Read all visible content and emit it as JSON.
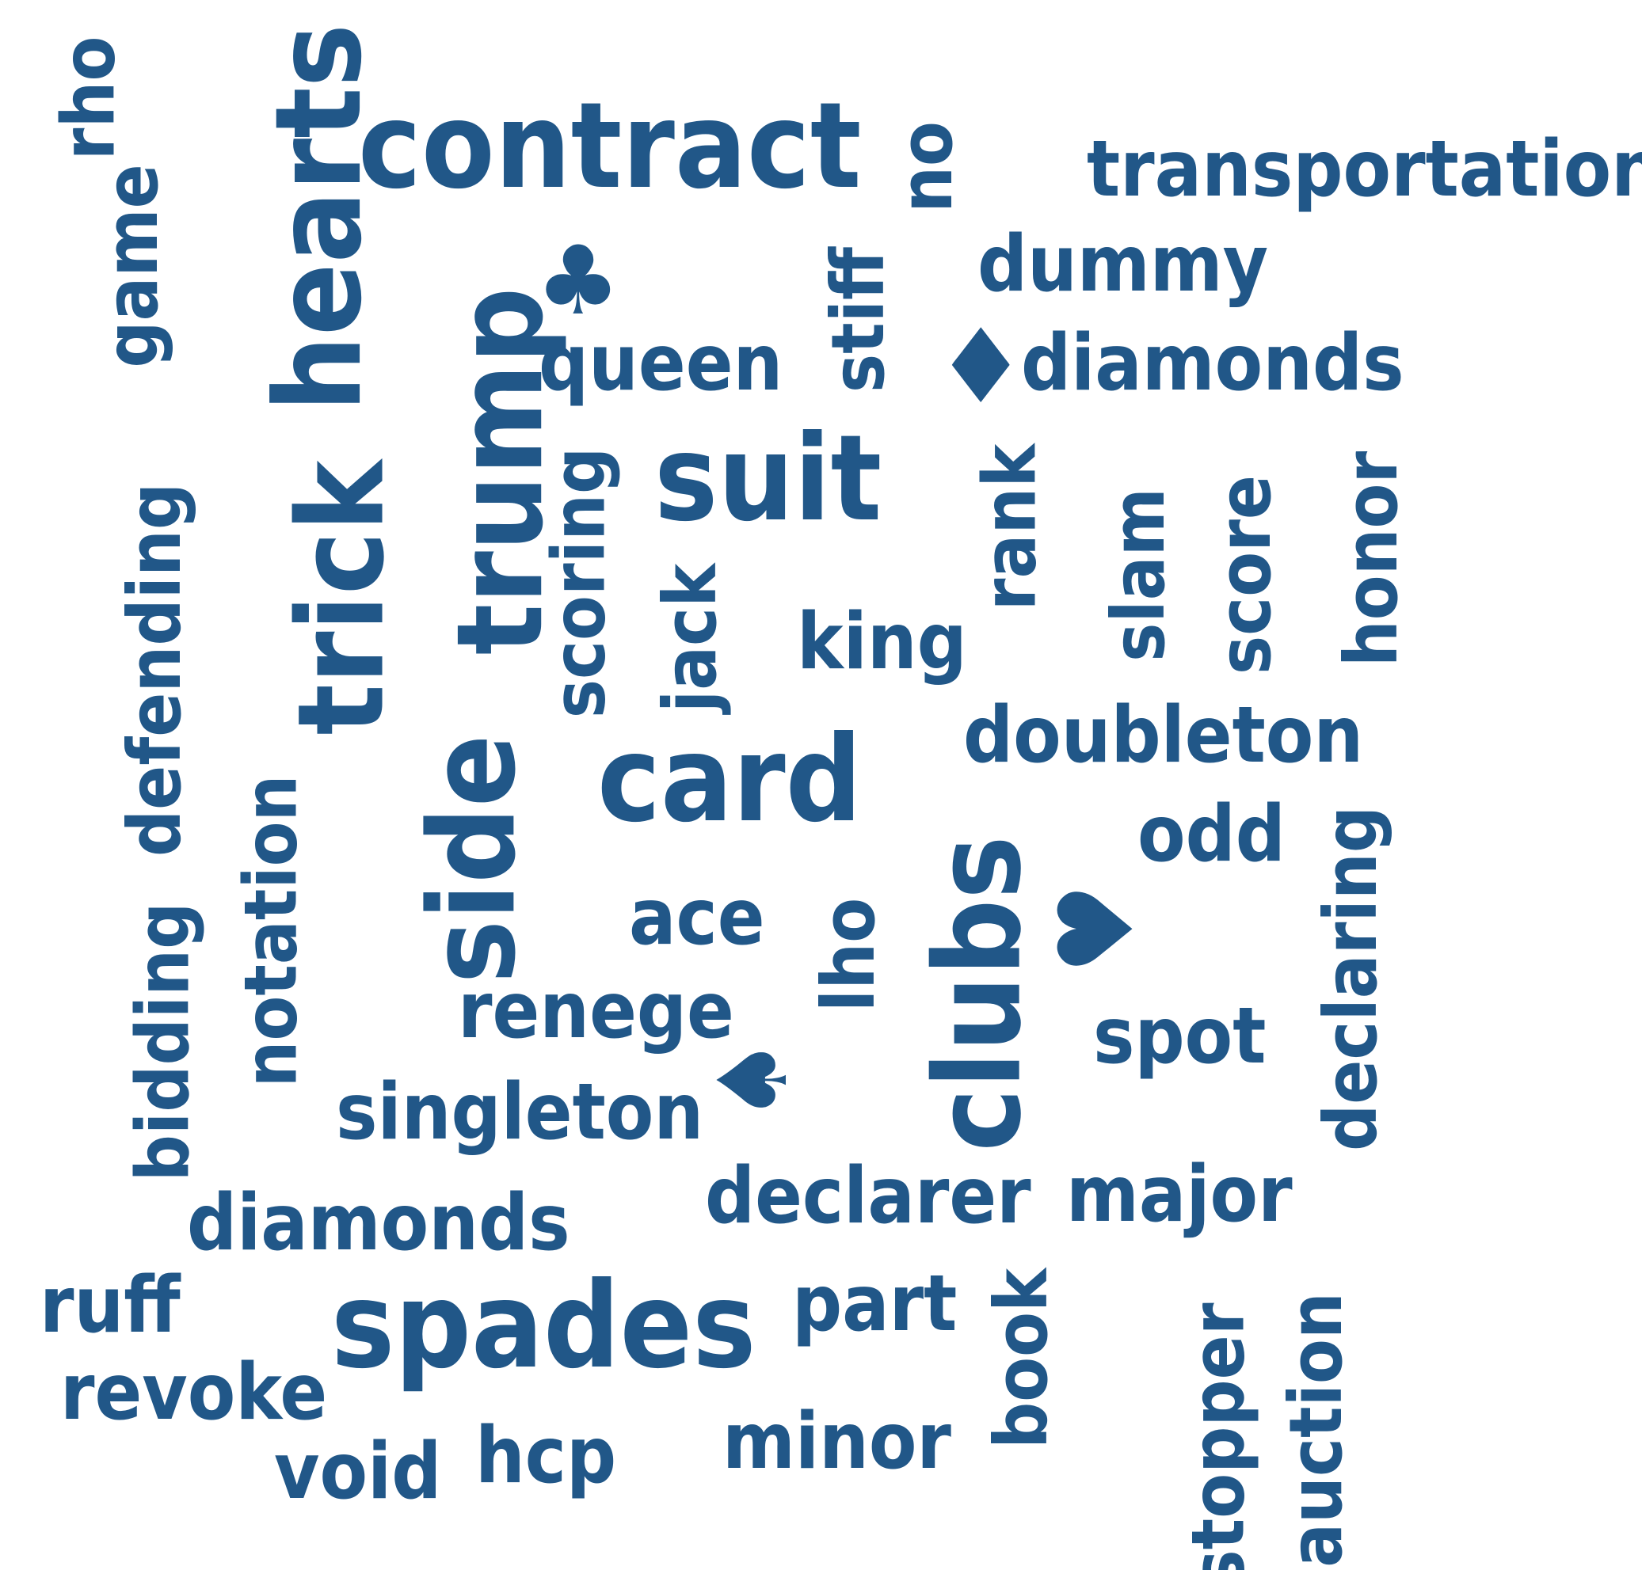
{
  "color": "#215788",
  "background": "#ffffff",
  "words": [
    {
      "text": "contract",
      "orientation": "horizontal"
    },
    {
      "text": "transportation",
      "orientation": "horizontal"
    },
    {
      "text": "dummy",
      "orientation": "horizontal"
    },
    {
      "text": "diamonds",
      "orientation": "horizontal"
    },
    {
      "text": "queen",
      "orientation": "horizontal"
    },
    {
      "text": "suit",
      "orientation": "horizontal"
    },
    {
      "text": "king",
      "orientation": "horizontal"
    },
    {
      "text": "doubleton",
      "orientation": "horizontal"
    },
    {
      "text": "card",
      "orientation": "horizontal"
    },
    {
      "text": "odd",
      "orientation": "horizontal"
    },
    {
      "text": "ace",
      "orientation": "horizontal"
    },
    {
      "text": "renege",
      "orientation": "horizontal"
    },
    {
      "text": "spot",
      "orientation": "horizontal"
    },
    {
      "text": "singleton",
      "orientation": "horizontal"
    },
    {
      "text": "declarer",
      "orientation": "horizontal"
    },
    {
      "text": "major",
      "orientation": "horizontal"
    },
    {
      "text": "diamonds",
      "orientation": "horizontal"
    },
    {
      "text": "ruff",
      "orientation": "horizontal"
    },
    {
      "text": "spades",
      "orientation": "horizontal"
    },
    {
      "text": "part",
      "orientation": "horizontal"
    },
    {
      "text": "revoke",
      "orientation": "horizontal"
    },
    {
      "text": "minor",
      "orientation": "horizontal"
    },
    {
      "text": "void",
      "orientation": "horizontal"
    },
    {
      "text": "hcp",
      "orientation": "horizontal"
    },
    {
      "text": "rho",
      "orientation": "vertical"
    },
    {
      "text": "hearts",
      "orientation": "vertical"
    },
    {
      "text": "game",
      "orientation": "vertical"
    },
    {
      "text": "no",
      "orientation": "vertical"
    },
    {
      "text": "stiff",
      "orientation": "vertical"
    },
    {
      "text": "trump",
      "orientation": "vertical"
    },
    {
      "text": "trick",
      "orientation": "vertical"
    },
    {
      "text": "defending",
      "orientation": "vertical"
    },
    {
      "text": "scoring",
      "orientation": "vertical"
    },
    {
      "text": "jack",
      "orientation": "vertical"
    },
    {
      "text": "rank",
      "orientation": "vertical"
    },
    {
      "text": "slam",
      "orientation": "vertical"
    },
    {
      "text": "score",
      "orientation": "vertical"
    },
    {
      "text": "honor",
      "orientation": "vertical"
    },
    {
      "text": "side",
      "orientation": "vertical"
    },
    {
      "text": "notation",
      "orientation": "vertical"
    },
    {
      "text": "bidding",
      "orientation": "vertical"
    },
    {
      "text": "lho",
      "orientation": "vertical"
    },
    {
      "text": "clubs",
      "orientation": "vertical"
    },
    {
      "text": "declaring",
      "orientation": "vertical"
    },
    {
      "text": "book",
      "orientation": "vertical"
    },
    {
      "text": "stopper",
      "orientation": "vertical"
    },
    {
      "text": "auction",
      "orientation": "vertical"
    }
  ],
  "symbols": [
    {
      "name": "club-icon",
      "glyph": "♣"
    },
    {
      "name": "diamond-icon",
      "glyph": "♦"
    },
    {
      "name": "heart-icon",
      "glyph": "♥"
    },
    {
      "name": "spade-icon",
      "glyph": "♠"
    }
  ]
}
